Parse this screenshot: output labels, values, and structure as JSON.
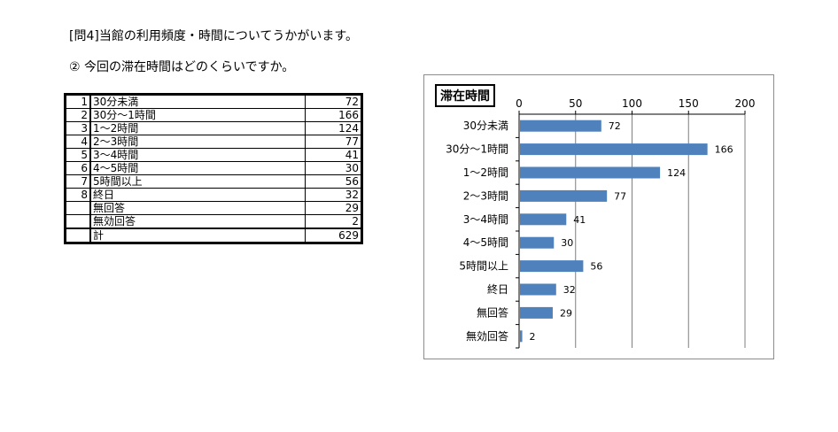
{
  "question_title": "[問4]当館の利用頻度・時間についてうかがいます。",
  "question_sub": "② 今回の滞在時間はどのくらいですか。",
  "table": {
    "rows": [
      {
        "num": "1",
        "label": "30分未満",
        "value": "72"
      },
      {
        "num": "2",
        "label": "30分～1時間",
        "value": "166"
      },
      {
        "num": "3",
        "label": "1～2時間",
        "value": "124"
      },
      {
        "num": "4",
        "label": "2～3時間",
        "value": "77"
      },
      {
        "num": "5",
        "label": "3～4時間",
        "value": "41"
      },
      {
        "num": "6",
        "label": "4～5時間",
        "value": "30"
      },
      {
        "num": "7",
        "label": "5時間以上",
        "value": "56"
      },
      {
        "num": "8",
        "label": "終日",
        "value": "32"
      },
      {
        "num": "",
        "label": "無回答",
        "value": "29"
      },
      {
        "num": "",
        "label": "無効回答",
        "value": "2"
      }
    ],
    "total": {
      "label": "計",
      "value": "629"
    }
  },
  "chart_data": {
    "type": "bar",
    "orientation": "horizontal",
    "title": "滞在時間",
    "categories": [
      "30分未満",
      "30分～1時間",
      "1～2時間",
      "2～3時間",
      "3～4時間",
      "4～5時間",
      "5時間以上",
      "終日",
      "無回答",
      "無効回答"
    ],
    "values": [
      72,
      166,
      124,
      77,
      41,
      30,
      56,
      32,
      29,
      2
    ],
    "xlim": [
      0,
      200
    ],
    "xticks": [
      0,
      50,
      100,
      150,
      200
    ],
    "axis_position": "top",
    "grid": true,
    "bar_color": "#4f81bd",
    "gridline_color": "#7f7f7f",
    "legend": "none"
  }
}
